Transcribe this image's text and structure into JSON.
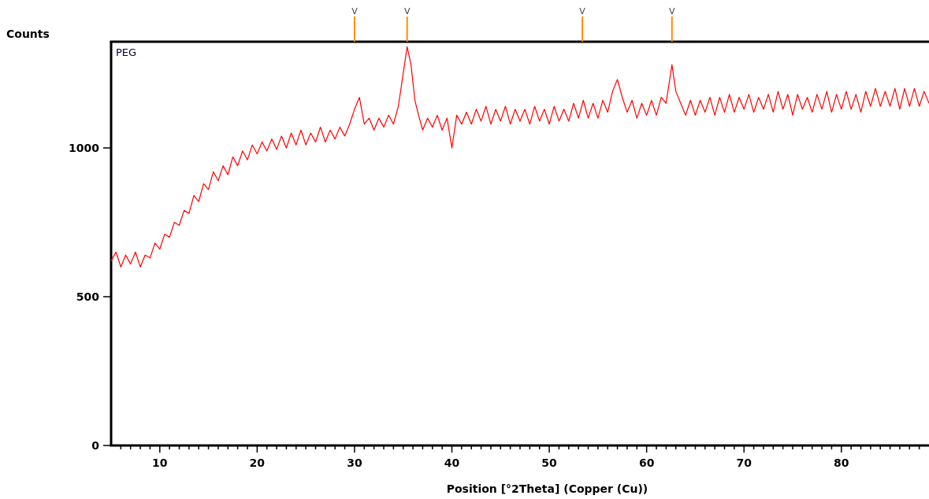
{
  "chart_data": {
    "type": "line",
    "xlabel": "Position [°2Theta] (Copper (Cu))",
    "ylabel": "Counts",
    "xlim": [
      5,
      89
    ],
    "ylim": [
      0,
      1357
    ],
    "xticks": [
      {
        "value": 6,
        "label": null
      },
      {
        "value": 7,
        "label": null
      },
      {
        "value": 8,
        "label": null
      },
      {
        "value": 9,
        "label": null
      },
      10,
      {
        "value": 11,
        "label": null
      },
      {
        "value": 12,
        "label": null
      },
      {
        "value": 13,
        "label": null
      },
      {
        "value": 14,
        "label": null
      },
      {
        "value": 15,
        "label": null
      },
      {
        "value": 16,
        "label": null
      },
      {
        "value": 17,
        "label": null
      },
      {
        "value": 18,
        "label": null
      },
      {
        "value": 19,
        "label": null
      },
      20,
      {
        "value": 21,
        "label": null
      },
      {
        "value": 22,
        "label": null
      },
      {
        "value": 23,
        "label": null
      },
      {
        "value": 24,
        "label": null
      },
      {
        "value": 25,
        "label": null
      },
      {
        "value": 26,
        "label": null
      },
      {
        "value": 27,
        "label": null
      },
      {
        "value": 28,
        "label": null
      },
      {
        "value": 29,
        "label": null
      },
      30,
      {
        "value": 31,
        "label": null
      },
      {
        "value": 32,
        "label": null
      },
      {
        "value": 33,
        "label": null
      },
      {
        "value": 34,
        "label": null
      },
      {
        "value": 35,
        "label": null
      },
      {
        "value": 36,
        "label": null
      },
      {
        "value": 37,
        "label": null
      },
      {
        "value": 38,
        "label": null
      },
      {
        "value": 39,
        "label": null
      },
      40,
      {
        "value": 41,
        "label": null
      },
      {
        "value": 42,
        "label": null
      },
      {
        "value": 43,
        "label": null
      },
      {
        "value": 44,
        "label": null
      },
      {
        "value": 45,
        "label": null
      },
      {
        "value": 46,
        "label": null
      },
      {
        "value": 47,
        "label": null
      },
      {
        "value": 48,
        "label": null
      },
      {
        "value": 49,
        "label": null
      },
      50,
      {
        "value": 51,
        "label": null
      },
      {
        "value": 52,
        "label": null
      },
      {
        "value": 53,
        "label": null
      },
      {
        "value": 54,
        "label": null
      },
      {
        "value": 55,
        "label": null
      },
      {
        "value": 56,
        "label": null
      },
      {
        "value": 57,
        "label": null
      },
      {
        "value": 58,
        "label": null
      },
      {
        "value": 59,
        "label": null
      },
      60,
      {
        "value": 61,
        "label": null
      },
      {
        "value": 62,
        "label": null
      },
      {
        "value": 63,
        "label": null
      },
      {
        "value": 64,
        "label": null
      },
      {
        "value": 65,
        "label": null
      },
      {
        "value": 66,
        "label": null
      },
      {
        "value": 67,
        "label": null
      },
      {
        "value": 68,
        "label": null
      },
      {
        "value": 69,
        "label": null
      },
      70,
      {
        "value": 71,
        "label": null
      },
      {
        "value": 72,
        "label": null
      },
      {
        "value": 73,
        "label": null
      },
      {
        "value": 74,
        "label": null
      },
      {
        "value": 75,
        "label": null
      },
      {
        "value": 76,
        "label": null
      },
      {
        "value": 77,
        "label": null
      },
      {
        "value": 78,
        "label": null
      },
      {
        "value": 79,
        "label": null
      },
      80,
      {
        "value": 81,
        "label": null
      },
      {
        "value": 82,
        "label": null
      },
      {
        "value": 83,
        "label": null
      },
      {
        "value": 84,
        "label": null
      },
      {
        "value": 85,
        "label": null
      },
      {
        "value": 86,
        "label": null
      },
      {
        "value": 87,
        "label": null
      },
      {
        "value": 88,
        "label": null
      }
    ],
    "yticks": [
      0,
      500,
      1000
    ],
    "line_style": "solid",
    "ref_lines": [
      {
        "axis": "x",
        "value": 30.0,
        "label": "V",
        "color": "#ff8c00"
      },
      {
        "axis": "x",
        "value": 35.4,
        "label": "V",
        "color": "#ff8c00"
      },
      {
        "axis": "x",
        "value": 53.4,
        "label": "V",
        "color": "#ff8c00"
      },
      {
        "axis": "x",
        "value": 62.6,
        "label": "V",
        "color": "#ff8c00"
      }
    ],
    "annotations": [
      "PEG"
    ],
    "series": [
      {
        "color": "#ff0000",
        "x": [
          5.0,
          5.5,
          6.0,
          6.5,
          7.0,
          7.5,
          8.0,
          8.5,
          9.0,
          9.5,
          10.0,
          10.5,
          11.0,
          11.5,
          12.0,
          12.5,
          13.0,
          13.5,
          14.0,
          14.5,
          15.0,
          15.5,
          16.0,
          16.5,
          17.0,
          17.5,
          18.0,
          18.5,
          19.0,
          19.5,
          20.0,
          20.5,
          21.0,
          21.5,
          22.0,
          22.5,
          23.0,
          23.5,
          24.0,
          24.5,
          25.0,
          25.5,
          26.0,
          26.5,
          27.0,
          27.5,
          28.0,
          28.5,
          29.0,
          29.5,
          30.0,
          30.5,
          31.0,
          31.5,
          32.0,
          32.5,
          33.0,
          33.5,
          34.0,
          34.5,
          35.0,
          35.4,
          35.8,
          36.2,
          36.5,
          37.0,
          37.5,
          38.0,
          38.5,
          39.0,
          39.5,
          40.0,
          40.5,
          41.0,
          41.5,
          42.0,
          42.5,
          43.0,
          43.5,
          44.0,
          44.5,
          45.0,
          45.5,
          46.0,
          46.5,
          47.0,
          47.5,
          48.0,
          48.5,
          49.0,
          49.5,
          50.0,
          50.5,
          51.0,
          51.5,
          52.0,
          52.5,
          53.0,
          53.5,
          54.0,
          54.5,
          55.0,
          55.5,
          56.0,
          56.5,
          57.0,
          57.5,
          58.0,
          58.5,
          59.0,
          59.5,
          60.0,
          60.5,
          61.0,
          61.5,
          62.0,
          62.6,
          63.0,
          63.5,
          64.0,
          64.5,
          65.0,
          65.5,
          66.0,
          66.5,
          67.0,
          67.5,
          68.0,
          68.5,
          69.0,
          69.5,
          70.0,
          70.5,
          71.0,
          71.5,
          72.0,
          72.5,
          73.0,
          73.5,
          74.0,
          74.5,
          75.0,
          75.5,
          76.0,
          76.5,
          77.0,
          77.5,
          78.0,
          78.5,
          79.0,
          79.5,
          80.0,
          80.5,
          81.0,
          81.5,
          82.0,
          82.5,
          83.0,
          83.5,
          84.0,
          84.5,
          85.0,
          85.5,
          86.0,
          86.5,
          87.0,
          87.5,
          88.0,
          88.5,
          89.0
        ],
        "values": [
          620,
          650,
          600,
          640,
          610,
          650,
          600,
          640,
          630,
          680,
          660,
          710,
          700,
          750,
          740,
          790,
          780,
          840,
          820,
          880,
          860,
          920,
          890,
          940,
          910,
          970,
          940,
          990,
          960,
          1010,
          980,
          1020,
          990,
          1030,
          995,
          1040,
          1000,
          1050,
          1010,
          1060,
          1010,
          1050,
          1020,
          1070,
          1020,
          1060,
          1030,
          1070,
          1040,
          1080,
          1130,
          1170,
          1080,
          1100,
          1060,
          1100,
          1070,
          1110,
          1080,
          1140,
          1250,
          1340,
          1280,
          1160,
          1120,
          1060,
          1100,
          1070,
          1110,
          1060,
          1100,
          1000,
          1110,
          1080,
          1120,
          1080,
          1130,
          1090,
          1140,
          1080,
          1130,
          1090,
          1140,
          1080,
          1130,
          1090,
          1130,
          1080,
          1140,
          1090,
          1130,
          1080,
          1140,
          1090,
          1130,
          1090,
          1150,
          1100,
          1160,
          1100,
          1150,
          1100,
          1160,
          1120,
          1190,
          1230,
          1170,
          1120,
          1160,
          1100,
          1150,
          1110,
          1160,
          1110,
          1170,
          1150,
          1280,
          1190,
          1150,
          1110,
          1160,
          1110,
          1160,
          1120,
          1170,
          1110,
          1170,
          1120,
          1180,
          1120,
          1170,
          1130,
          1180,
          1120,
          1170,
          1130,
          1180,
          1120,
          1190,
          1130,
          1180,
          1110,
          1180,
          1130,
          1170,
          1120,
          1180,
          1130,
          1190,
          1120,
          1180,
          1130,
          1190,
          1130,
          1180,
          1120,
          1190,
          1140,
          1200,
          1140,
          1190,
          1140,
          1200,
          1130,
          1200,
          1140,
          1200,
          1140,
          1190,
          1150
        ]
      }
    ]
  }
}
